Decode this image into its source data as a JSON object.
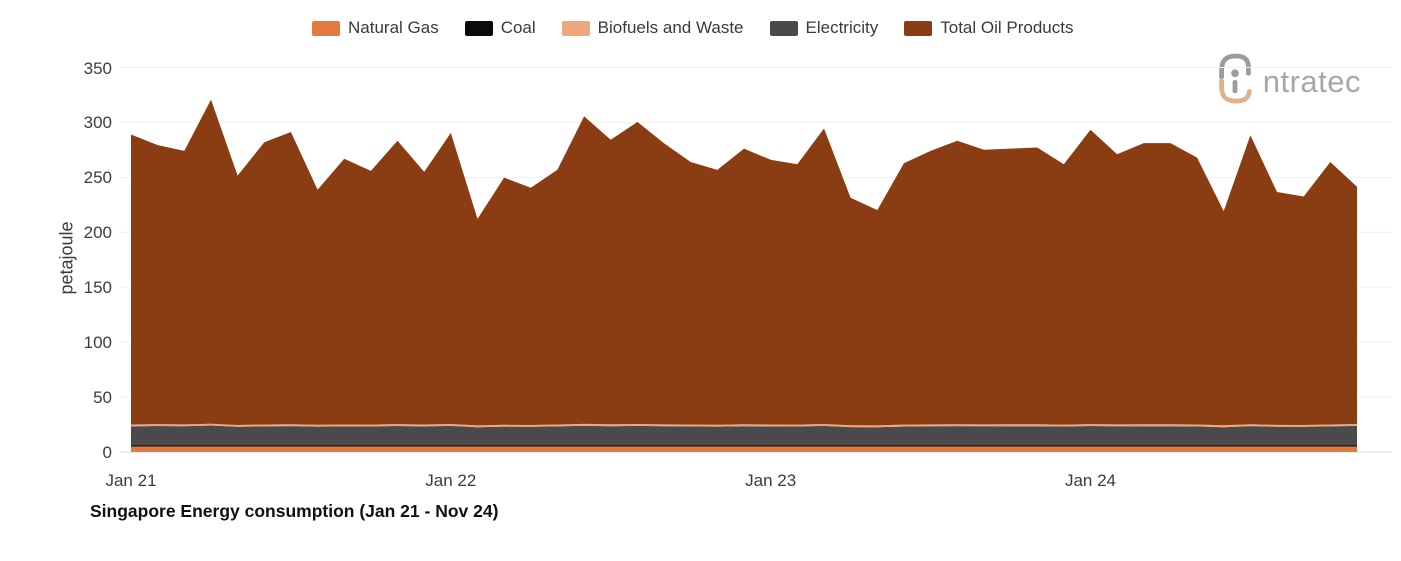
{
  "logo": {
    "text": "ntratec",
    "colors": {
      "top_arc": "#9b9b9b",
      "bottom_arc": "#ddb28c",
      "dot_and_stem": "#9b9b9b",
      "text": "#a7a7a7"
    }
  },
  "legend": {
    "items": [
      {
        "label": "Natural Gas",
        "color": "#e2793d"
      },
      {
        "label": "Coal",
        "color": "#0b0b0b"
      },
      {
        "label": "Biofuels and Waste",
        "color": "#eca77e"
      },
      {
        "label": "Electricity",
        "color": "#4a4a4a"
      },
      {
        "label": "Total Oil Products",
        "color": "#8a3d12"
      }
    ]
  },
  "chart_data": {
    "type": "area",
    "stacked": true,
    "title": "Singapore Energy consumption (Jan 21 - Nov 24)",
    "xlabel": "",
    "ylabel": "petajoule",
    "ylim": [
      0,
      350
    ],
    "yticks": [
      0,
      50,
      100,
      150,
      200,
      250,
      300,
      350
    ],
    "grid": true,
    "legend_position": "top",
    "colors": {
      "gridline": "#f1f1f1",
      "axis_line": "#d9d9d9",
      "tick_text": "#3c3c3c"
    },
    "x_months": [
      "Jan 21",
      "Feb 21",
      "Mar 21",
      "Apr 21",
      "May 21",
      "Jun 21",
      "Jul 21",
      "Aug 21",
      "Sep 21",
      "Oct 21",
      "Nov 21",
      "Dec 21",
      "Jan 22",
      "Feb 22",
      "Mar 22",
      "Apr 22",
      "May 22",
      "Jun 22",
      "Jul 22",
      "Aug 22",
      "Sep 22",
      "Oct 22",
      "Nov 22",
      "Dec 22",
      "Jan 23",
      "Feb 23",
      "Mar 23",
      "Apr 23",
      "May 23",
      "Jun 23",
      "Jul 23",
      "Aug 23",
      "Sep 23",
      "Oct 23",
      "Nov 23",
      "Dec 23",
      "Jan 24",
      "Feb 24",
      "Mar 24",
      "Apr 24",
      "May 24",
      "Jun 24",
      "Jul 24",
      "Aug 24",
      "Sep 24",
      "Oct 24",
      "Nov 24"
    ],
    "xticks": [
      {
        "label": "Jan 21",
        "month_index": 0
      },
      {
        "label": "Jan 22",
        "month_index": 12
      },
      {
        "label": "Jan 23",
        "month_index": 24
      },
      {
        "label": "Jan 24",
        "month_index": 36
      }
    ],
    "stack_order": [
      "Natural Gas",
      "Coal",
      "Electricity",
      "Biofuels and Waste",
      "Total Oil Products"
    ],
    "series": [
      {
        "name": "Natural Gas",
        "color": "#e2793d",
        "values": [
          5,
          5,
          5,
          5,
          5,
          5,
          5,
          5,
          5,
          5,
          5,
          5,
          5,
          5,
          5,
          5,
          5,
          5,
          5,
          5,
          5,
          5,
          5,
          5,
          5,
          5,
          5,
          5,
          5,
          5,
          5,
          5,
          5,
          5,
          5,
          5,
          5,
          5,
          5,
          5,
          5,
          5,
          5,
          5,
          5,
          5,
          5
        ]
      },
      {
        "name": "Coal",
        "color": "#0b0b0b",
        "values": [
          1.3,
          1.3,
          1.3,
          1.3,
          1.3,
          1.3,
          1.3,
          1.3,
          1.3,
          1.3,
          1.3,
          1.3,
          1.3,
          1.3,
          1.3,
          1.3,
          1.3,
          1.3,
          1.3,
          1.3,
          1.3,
          1.3,
          1.3,
          1.3,
          1.3,
          1.3,
          1.3,
          1.3,
          1.3,
          1.3,
          1.3,
          1.3,
          1.3,
          1.3,
          1.3,
          1.3,
          1.3,
          1.3,
          1.3,
          1.3,
          1.3,
          1.3,
          1.3,
          1.3,
          1.3,
          1.3,
          1.3
        ]
      },
      {
        "name": "Electricity",
        "color": "#4a4a4a",
        "values": [
          17,
          17.4,
          17.1,
          17.8,
          16.6,
          17,
          17.3,
          16.8,
          17,
          16.9,
          17.4,
          17,
          17.5,
          16.2,
          16.8,
          16.6,
          17,
          17.6,
          17.2,
          17.5,
          17.1,
          17,
          16.8,
          17.2,
          17,
          16.9,
          17.5,
          16.4,
          16.2,
          16.9,
          17.1,
          17.3,
          17.1,
          17.2,
          17.2,
          16.9,
          17.4,
          17.1,
          17.2,
          17.2,
          17,
          16.3,
          17.3,
          16.7,
          16.6,
          17,
          17.5
        ]
      },
      {
        "name": "Biofuels and Waste",
        "color": "#eca77e",
        "values": [
          1.7,
          1.7,
          1.7,
          1.7,
          1.7,
          1.7,
          1.7,
          1.7,
          1.7,
          1.7,
          1.7,
          1.7,
          1.7,
          1.7,
          1.7,
          1.7,
          1.7,
          1.7,
          1.7,
          1.7,
          1.7,
          1.7,
          1.7,
          1.7,
          1.7,
          1.7,
          1.7,
          1.7,
          1.7,
          1.7,
          1.7,
          1.7,
          1.7,
          1.7,
          1.7,
          1.7,
          1.7,
          1.7,
          1.7,
          1.7,
          1.7,
          1.7,
          1.7,
          1.7,
          1.7,
          1.7,
          1.7
        ]
      },
      {
        "name": "Total Oil Products",
        "color": "#8a3d12",
        "values": [
          264,
          254,
          249,
          295,
          227,
          257,
          266,
          214,
          242,
          231,
          258,
          230,
          265,
          188,
          225,
          216,
          232,
          280,
          259,
          275,
          256,
          239,
          232,
          251,
          241,
          237,
          269,
          207,
          196,
          238,
          249,
          258,
          250,
          251,
          252,
          237,
          268,
          246,
          256,
          256,
          243,
          195,
          263,
          212,
          208,
          239,
          216
        ]
      }
    ]
  }
}
